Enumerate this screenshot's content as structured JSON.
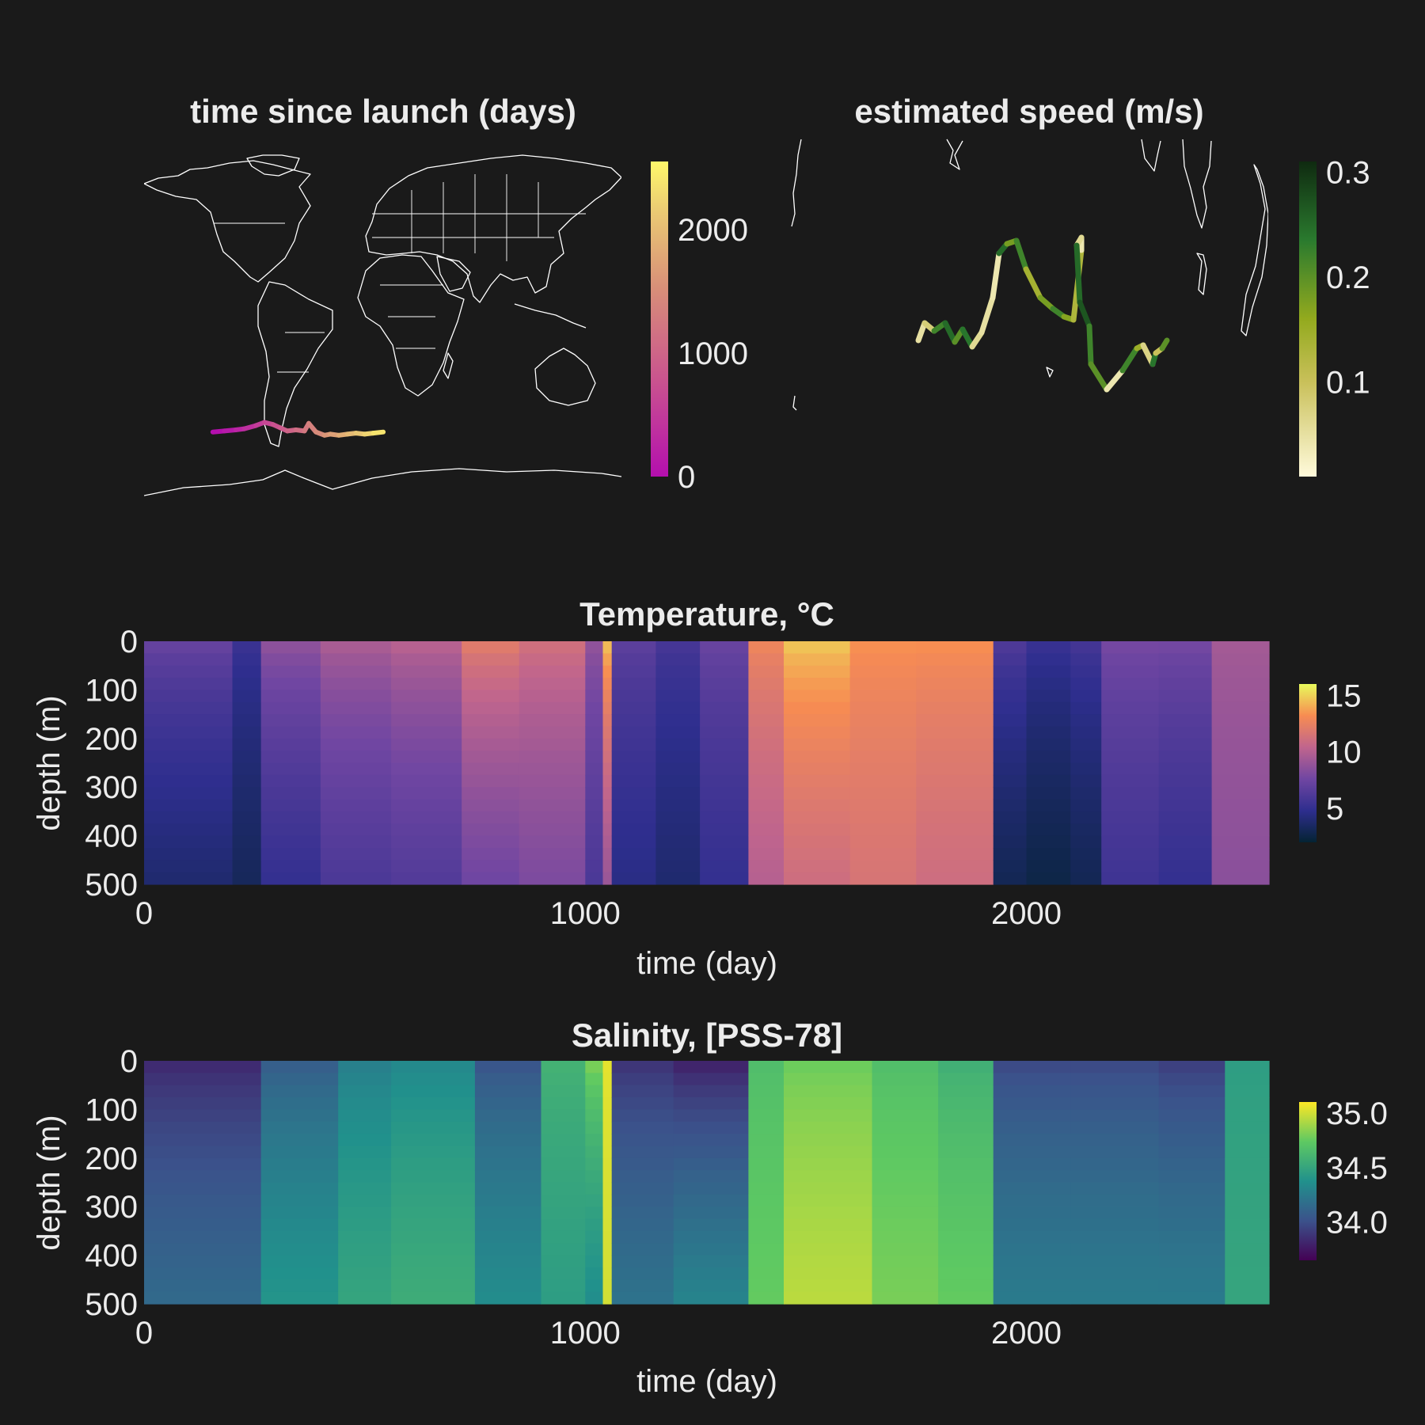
{
  "colors": {
    "background": "#1a1a1a",
    "text": "#ececec",
    "coastline": "#ffffff",
    "plasma_low": "#b40fae",
    "plasma_high": "#fff86a",
    "speed_low": "#fffadb",
    "speed_high": "#0f2a10"
  },
  "chart_data": [
    {
      "type": "scatter",
      "name": "trajectory-time",
      "title": "time since launch (days)",
      "projection": "global map",
      "colorbar": {
        "label": "",
        "min": 0,
        "max": 2550,
        "ticks": [
          "0",
          "1000",
          "2000"
        ],
        "tick_values": [
          0,
          1000,
          2000
        ],
        "colormap": "plasma-like (magenta to yellow)"
      },
      "track": {
        "lon": [
          8,
          16,
          24,
          30,
          38,
          44,
          50,
          55,
          60,
          66,
          72,
          75,
          80,
          86,
          90,
          96,
          102,
          108,
          114,
          120,
          127
        ],
        "lat": [
          -49,
          -48.5,
          -48,
          -47.5,
          -46,
          -44.5,
          -45.5,
          -47,
          -48.5,
          -48,
          -48.5,
          -45,
          -49,
          -50.5,
          -50,
          -50.5,
          -50,
          -49.5,
          -50,
          -49.5,
          -49
        ],
        "days": [
          0,
          120,
          250,
          380,
          520,
          640,
          760,
          880,
          1000,
          1120,
          1250,
          1360,
          1480,
          1600,
          1720,
          1850,
          1980,
          2110,
          2240,
          2380,
          2550
        ]
      }
    },
    {
      "type": "scatter",
      "name": "trajectory-speed",
      "title": "estimated speed (m/s)",
      "colorbar": {
        "label": "",
        "min": 0.01,
        "max": 0.31,
        "ticks": [
          "0.1",
          "0.2",
          "0.3"
        ],
        "tick_values": [
          0.1,
          0.2,
          0.3
        ],
        "colormap": "speed (cream to dark green)"
      },
      "track_speed": [
        0.05,
        0.08,
        0.22,
        0.25,
        0.2,
        0.24,
        0.06,
        0.05,
        0.04,
        0.25,
        0.18,
        0.22,
        0.14,
        0.18,
        0.22,
        0.17,
        0.13,
        0.04,
        0.06,
        0.25,
        0.27,
        0.22,
        0.2,
        0.04,
        0.22,
        0.15,
        0.07,
        0.24,
        0.1,
        0.2
      ]
    },
    {
      "type": "heatmap",
      "name": "temperature-section",
      "title": "Temperature, °C",
      "xlabel": "time (day)",
      "ylabel": "depth (m)",
      "xlim": [
        0,
        2550
      ],
      "ylim": [
        500,
        0
      ],
      "xticks": [
        "0",
        "1000",
        "2000"
      ],
      "yticks": [
        "0",
        "100",
        "200",
        "300",
        "400",
        "500"
      ],
      "colorbar": {
        "label": "",
        "min": 2,
        "max": 16,
        "ticks": [
          "5",
          "10",
          "15"
        ],
        "tick_values": [
          5,
          10,
          15
        ],
        "colormap": "thermal"
      },
      "segments": [
        {
          "x0": 0,
          "x1": 200,
          "surface": 7.5,
          "deep": 3.8
        },
        {
          "x0": 200,
          "x1": 265,
          "surface": 5.5,
          "deep": 3.2
        },
        {
          "x0": 265,
          "x1": 400,
          "surface": 9.0,
          "deep": 5.0
        },
        {
          "x0": 400,
          "x1": 560,
          "surface": 10.0,
          "deep": 6.0
        },
        {
          "x0": 560,
          "x1": 720,
          "surface": 10.5,
          "deep": 6.3
        },
        {
          "x0": 720,
          "x1": 850,
          "surface": 12.5,
          "deep": 7.5
        },
        {
          "x0": 850,
          "x1": 1000,
          "surface": 11.5,
          "deep": 8.0
        },
        {
          "x0": 1000,
          "x1": 1040,
          "surface": 9.0,
          "deep": 6.0
        },
        {
          "x0": 1040,
          "x1": 1060,
          "surface": 15.0,
          "deep": 9.0
        },
        {
          "x0": 1060,
          "x1": 1160,
          "surface": 7.0,
          "deep": 4.5
        },
        {
          "x0": 1160,
          "x1": 1260,
          "surface": 6.0,
          "deep": 3.8
        },
        {
          "x0": 1260,
          "x1": 1370,
          "surface": 7.5,
          "deep": 5.0
        },
        {
          "x0": 1370,
          "x1": 1450,
          "surface": 13.0,
          "deep": 10.0
        },
        {
          "x0": 1450,
          "x1": 1600,
          "surface": 15.0,
          "deep": 11.0
        },
        {
          "x0": 1600,
          "x1": 1750,
          "surface": 13.5,
          "deep": 11.5
        },
        {
          "x0": 1750,
          "x1": 1925,
          "surface": 13.5,
          "deep": 11.0
        },
        {
          "x0": 1925,
          "x1": 2000,
          "surface": 6.5,
          "deep": 3.0
        },
        {
          "x0": 2000,
          "x1": 2100,
          "surface": 5.5,
          "deep": 2.6
        },
        {
          "x0": 2100,
          "x1": 2170,
          "surface": 6.0,
          "deep": 3.0
        },
        {
          "x0": 2170,
          "x1": 2300,
          "surface": 8.0,
          "deep": 5.5
        },
        {
          "x0": 2300,
          "x1": 2420,
          "surface": 8.0,
          "deep": 5.0
        },
        {
          "x0": 2420,
          "x1": 2550,
          "surface": 9.5,
          "deep": 8.5
        }
      ]
    },
    {
      "type": "heatmap",
      "name": "salinity-section",
      "title": "Salinity, [PSS-78]",
      "xlabel": "time (day)",
      "ylabel": "depth (m)",
      "xlim": [
        0,
        2550
      ],
      "ylim": [
        500,
        0
      ],
      "xticks": [
        "0",
        "1000",
        "2000"
      ],
      "yticks": [
        "0",
        "100",
        "200",
        "300",
        "400",
        "500"
      ],
      "colorbar": {
        "label": "",
        "min": 33.65,
        "max": 35.1,
        "ticks": [
          "34.0",
          "34.5",
          "35.0"
        ],
        "tick_values": [
          34.0,
          34.5,
          35.0
        ],
        "colormap": "viridis"
      },
      "segments": [
        {
          "x0": 0,
          "x1": 265,
          "surface": 33.8,
          "deep": 34.15
        },
        {
          "x0": 265,
          "x1": 440,
          "surface": 34.05,
          "deep": 34.4
        },
        {
          "x0": 440,
          "x1": 560,
          "surface": 34.25,
          "deep": 34.5
        },
        {
          "x0": 560,
          "x1": 750,
          "surface": 34.3,
          "deep": 34.55
        },
        {
          "x0": 750,
          "x1": 900,
          "surface": 34.0,
          "deep": 34.35
        },
        {
          "x0": 900,
          "x1": 1000,
          "surface": 34.6,
          "deep": 34.45
        },
        {
          "x0": 1000,
          "x1": 1040,
          "surface": 34.85,
          "deep": 34.35
        },
        {
          "x0": 1040,
          "x1": 1060,
          "surface": 35.05,
          "deep": 35.0
        },
        {
          "x0": 1060,
          "x1": 1200,
          "surface": 33.85,
          "deep": 34.2
        },
        {
          "x0": 1200,
          "x1": 1370,
          "surface": 33.75,
          "deep": 34.3
        },
        {
          "x0": 1370,
          "x1": 1450,
          "surface": 34.65,
          "deep": 34.75
        },
        {
          "x0": 1450,
          "x1": 1650,
          "surface": 34.75,
          "deep": 34.95
        },
        {
          "x0": 1650,
          "x1": 1800,
          "surface": 34.65,
          "deep": 34.8
        },
        {
          "x0": 1800,
          "x1": 1925,
          "surface": 34.55,
          "deep": 34.75
        },
        {
          "x0": 1925,
          "x1": 2100,
          "surface": 33.95,
          "deep": 34.25
        },
        {
          "x0": 2100,
          "x1": 2300,
          "surface": 33.95,
          "deep": 34.25
        },
        {
          "x0": 2300,
          "x1": 2450,
          "surface": 33.9,
          "deep": 34.25
        },
        {
          "x0": 2450,
          "x1": 2550,
          "surface": 34.45,
          "deep": 34.5
        }
      ]
    }
  ]
}
